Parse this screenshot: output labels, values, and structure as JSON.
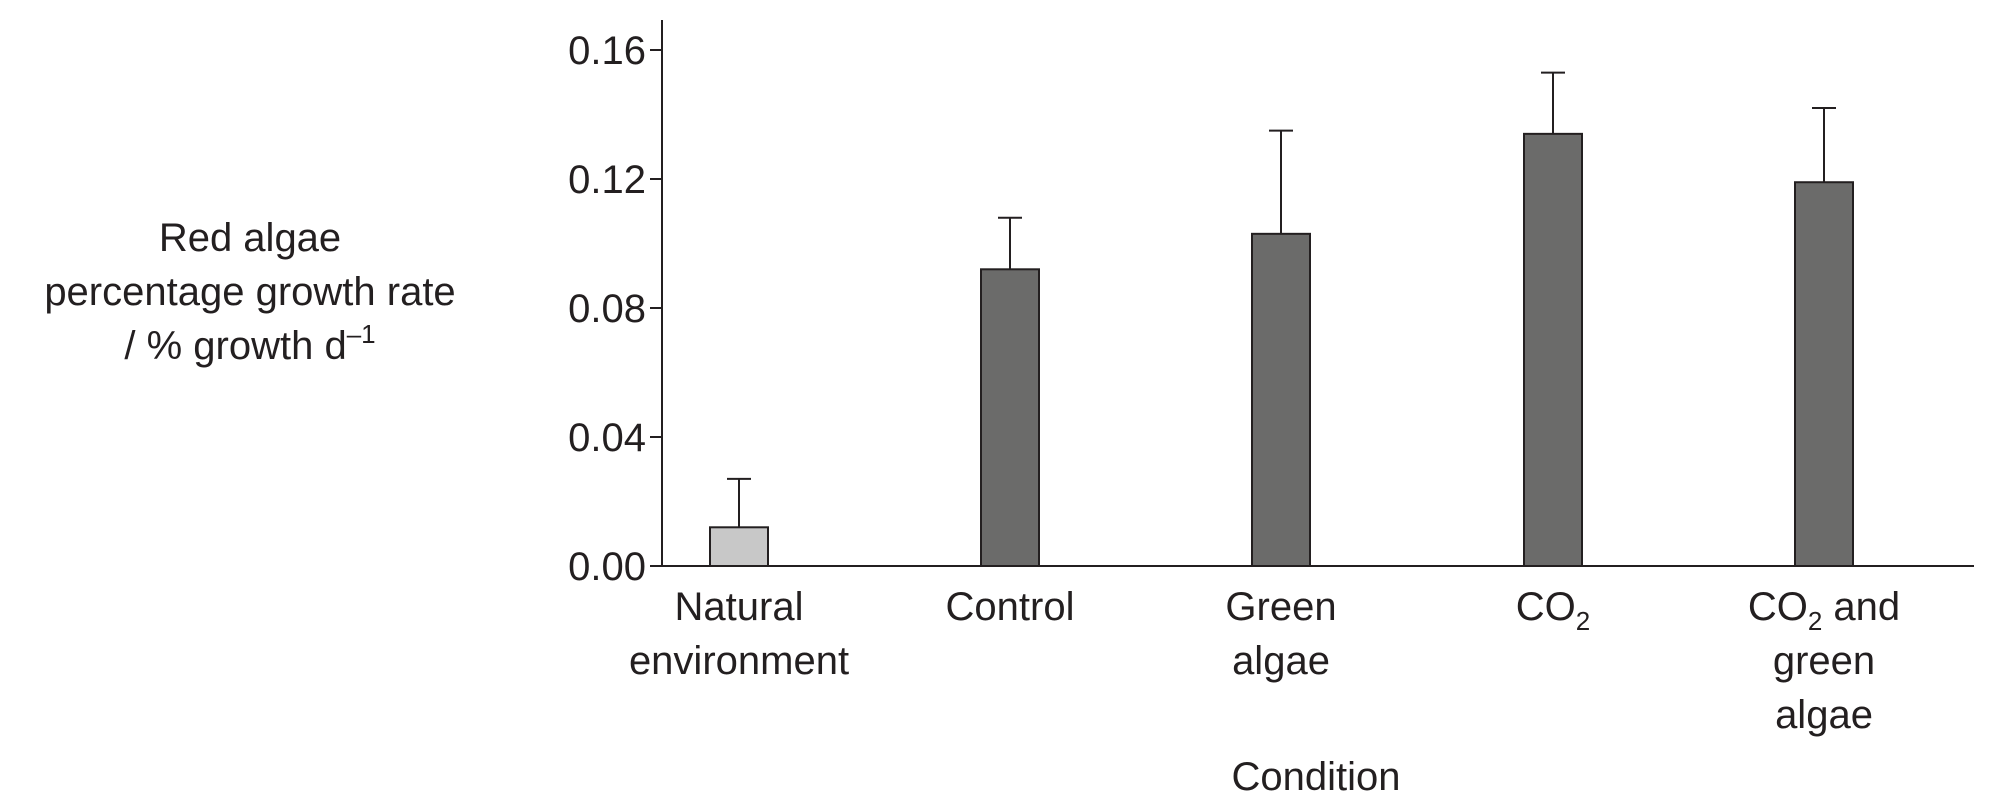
{
  "chart_data": {
    "type": "bar",
    "categories": [
      [
        "Natural",
        "environment"
      ],
      [
        "Control"
      ],
      [
        "Green",
        "algae"
      ],
      [
        {
          "t": "CO"
        },
        {
          "t": "2",
          "sub": true
        }
      ],
      [
        [
          {
            "t": "CO"
          },
          {
            "t": "2",
            "sub": true
          },
          {
            "t": " and"
          }
        ],
        "green",
        "algae"
      ]
    ],
    "values": [
      0.012,
      0.092,
      0.103,
      0.134,
      0.119
    ],
    "error_upper": [
      0.027,
      0.108,
      0.135,
      0.153,
      0.142
    ],
    "bar_colors": [
      "#c8c8c8",
      "#6b6b6a",
      "#6b6b6a",
      "#6b6b6a",
      "#6b6b6a"
    ],
    "yticks": [
      "0.00",
      "0.04",
      "0.08",
      "0.12",
      "0.16"
    ],
    "ylim": [
      0,
      0.17
    ],
    "xlabel": "Condition",
    "ylabel_lines": [
      [
        {
          "t": "Red algae"
        }
      ],
      [
        {
          "t": "percentage growth rate"
        }
      ],
      [
        {
          "t": "/ % growth d"
        },
        {
          "t": "–1",
          "sup": true
        }
      ]
    ],
    "grid": false,
    "legend": "none",
    "colors": {
      "axis": "#231f20",
      "bar_edge": "#231f20",
      "text": "#231f20"
    }
  }
}
